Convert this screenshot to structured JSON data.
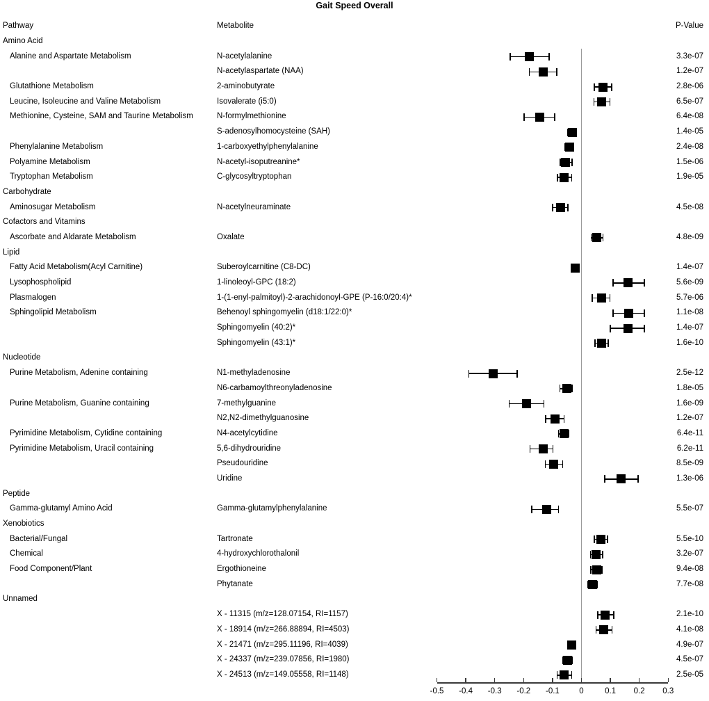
{
  "title": "Gait Speed Overall",
  "columns": {
    "pathway": "Pathway",
    "metabolite": "Metabolite",
    "pvalue": "P-Value"
  },
  "chart_data": {
    "type": "scatter",
    "variant": "forest-plot-with-table",
    "title": "Gait Speed Overall",
    "marker": "filled-black-square-with-ci-whiskers",
    "grid": false,
    "legend": "none",
    "x_axis": {
      "lim": [
        -0.5,
        0.3
      ],
      "ticks": [
        -0.5,
        -0.4,
        -0.3,
        -0.2,
        -0.1,
        0,
        0.1,
        0.2,
        0.3
      ],
      "tick_labels": [
        "-0.5",
        "-0.4",
        "-0.3",
        "-0.2",
        "-0.1",
        "0",
        "0.1",
        "0.2",
        "0.3"
      ],
      "reference_line_x": 0
    },
    "rows": [
      {
        "kind": "section",
        "label": "Amino Acid"
      },
      {
        "kind": "item",
        "pathway": "Alanine and Aspartate Metabolism",
        "metabolite": "N-acetylalanine",
        "pvalue": "3.3e-07",
        "est": -0.18,
        "lo": -0.246,
        "hi": -0.112
      },
      {
        "kind": "item",
        "pathway": "",
        "metabolite": "N-acetylaspartate (NAA)",
        "pvalue": "1.2e-07",
        "est": -0.132,
        "lo": -0.18,
        "hi": -0.085
      },
      {
        "kind": "item",
        "pathway": "Glutathione Metabolism",
        "metabolite": "2-aminobutyrate",
        "pvalue": "2.8e-06",
        "est": 0.075,
        "lo": 0.045,
        "hi": 0.105
      },
      {
        "kind": "item",
        "pathway": "Leucine, Isoleucine and Valine Metabolism",
        "metabolite": "Isovalerate (i5:0)",
        "pvalue": "6.5e-07",
        "est": 0.07,
        "lo": 0.043,
        "hi": 0.098
      },
      {
        "kind": "item",
        "pathway": "Methionine, Cysteine, SAM and Taurine Metabolism",
        "metabolite": "N-formylmethionine",
        "pvalue": "6.4e-08",
        "est": -0.145,
        "lo": -0.198,
        "hi": -0.093
      },
      {
        "kind": "item",
        "pathway": "",
        "metabolite": "S-adenosylhomocysteine (SAH)",
        "pvalue": "1.4e-05",
        "est": -0.032,
        "lo": -0.047,
        "hi": -0.019
      },
      {
        "kind": "item",
        "pathway": "Phenylalanine Metabolism",
        "metabolite": "1-carboxyethylphenylalanine",
        "pvalue": "2.4e-08",
        "est": -0.042,
        "lo": -0.056,
        "hi": -0.028
      },
      {
        "kind": "item",
        "pathway": "Polyamine Metabolism",
        "metabolite": "N-acetyl-isoputreanine*",
        "pvalue": "1.5e-06",
        "est": -0.055,
        "lo": -0.073,
        "hi": -0.033
      },
      {
        "kind": "item",
        "pathway": "Tryptophan Metabolism",
        "metabolite": "C-glycosyltryptophan",
        "pvalue": "1.9e-05",
        "est": -0.06,
        "lo": -0.083,
        "hi": -0.034
      },
      {
        "kind": "section",
        "label": "Carbohydrate"
      },
      {
        "kind": "item",
        "pathway": "Aminosugar Metabolism",
        "metabolite": "N-acetylneuraminate",
        "pvalue": "4.5e-08",
        "est": -0.073,
        "lo": -0.1,
        "hi": -0.047
      },
      {
        "kind": "section",
        "label": "Cofactors and Vitamins"
      },
      {
        "kind": "item",
        "pathway": "Ascorbate and Aldarate Metabolism",
        "metabolite": "Oxalate",
        "pvalue": "4.8e-09",
        "est": 0.053,
        "lo": 0.034,
        "hi": 0.075
      },
      {
        "kind": "section",
        "label": "Lipid"
      },
      {
        "kind": "item",
        "pathway": "Fatty Acid Metabolism(Acyl Carnitine)",
        "metabolite": "Suberoylcarnitine (C8-DC)",
        "pvalue": "1.4e-07",
        "est": -0.022,
        "lo": -0.036,
        "hi": -0.009
      },
      {
        "kind": "item",
        "pathway": "Lysophospholipid",
        "metabolite": "1-linoleoyl-GPC (18:2)",
        "pvalue": "5.6e-09",
        "est": 0.16,
        "lo": 0.11,
        "hi": 0.218
      },
      {
        "kind": "item",
        "pathway": "Plasmalogen",
        "metabolite": "1-(1-enyl-palmitoyl)-2-arachidonoyl-GPE (P-16:0/20:4)*",
        "pvalue": "5.7e-06",
        "est": 0.069,
        "lo": 0.037,
        "hi": 0.098
      },
      {
        "kind": "item",
        "pathway": "Sphingolipid Metabolism",
        "metabolite": "Behenoyl sphingomyelin (d18:1/22:0)*",
        "pvalue": "1.1e-08",
        "est": 0.164,
        "lo": 0.11,
        "hi": 0.218
      },
      {
        "kind": "item",
        "pathway": "",
        "metabolite": "Sphingomyelin (40:2)*",
        "pvalue": "1.4e-07",
        "est": 0.16,
        "lo": 0.1,
        "hi": 0.218
      },
      {
        "kind": "item",
        "pathway": "",
        "metabolite": "Sphingomyelin (43:1)*",
        "pvalue": "1.6e-10",
        "est": 0.069,
        "lo": 0.047,
        "hi": 0.092
      },
      {
        "kind": "section",
        "label": "Nucleotide"
      },
      {
        "kind": "item",
        "pathway": "Purine Metabolism, Adenine containing",
        "metabolite": "N1-methyladenosine",
        "pvalue": "2.5e-12",
        "est": -0.306,
        "lo": -0.389,
        "hi": -0.223
      },
      {
        "kind": "item",
        "pathway": "",
        "metabolite": "N6-carbamoylthreonyladenosine",
        "pvalue": "1.8e-05",
        "est": -0.05,
        "lo": -0.075,
        "hi": -0.033
      },
      {
        "kind": "item",
        "pathway": "Purine Metabolism, Guanine containing",
        "metabolite": "7-methylguanine",
        "pvalue": "1.6e-09",
        "est": -0.19,
        "lo": -0.25,
        "hi": -0.13
      },
      {
        "kind": "item",
        "pathway": "",
        "metabolite": "N2,N2-dimethylguanosine",
        "pvalue": "1.2e-07",
        "est": -0.091,
        "lo": -0.124,
        "hi": -0.06
      },
      {
        "kind": "item",
        "pathway": "Pyrimidine Metabolism, Cytidine containing",
        "metabolite": "N4-acetylcytidine",
        "pvalue": "6.4e-11",
        "est": -0.061,
        "lo": -0.079,
        "hi": -0.045
      },
      {
        "kind": "item",
        "pathway": "Pyrimidine Metabolism, Uracil containing",
        "metabolite": "5,6-dihydrouridine",
        "pvalue": "6.2e-11",
        "est": -0.133,
        "lo": -0.178,
        "hi": -0.099
      },
      {
        "kind": "item",
        "pathway": "",
        "metabolite": "Pseudouridine",
        "pvalue": "8.5e-09",
        "est": -0.095,
        "lo": -0.125,
        "hi": -0.065
      },
      {
        "kind": "item",
        "pathway": "",
        "metabolite": "Uridine",
        "pvalue": "1.3e-06",
        "est": 0.138,
        "lo": 0.08,
        "hi": 0.196
      },
      {
        "kind": "section",
        "label": "Peptide"
      },
      {
        "kind": "item",
        "pathway": "Gamma-glutamyl Amino Acid",
        "metabolite": "Gamma-glutamylphenylalanine",
        "pvalue": "5.5e-07",
        "est": -0.121,
        "lo": -0.172,
        "hi": -0.079
      },
      {
        "kind": "section",
        "label": "Xenobiotics"
      },
      {
        "kind": "item",
        "pathway": "Bacterial/Fungal",
        "metabolite": "Tartronate",
        "pvalue": "5.5e-10",
        "est": 0.067,
        "lo": 0.045,
        "hi": 0.09
      },
      {
        "kind": "item",
        "pathway": "Chemical",
        "metabolite": "4-hydroxychlorothalonil",
        "pvalue": "3.2e-07",
        "est": 0.051,
        "lo": 0.031,
        "hi": 0.073
      },
      {
        "kind": "item",
        "pathway": "Food Component/Plant",
        "metabolite": "Ergothioneine",
        "pvalue": "9.4e-08",
        "est": 0.053,
        "lo": 0.033,
        "hi": 0.071
      },
      {
        "kind": "item",
        "pathway": "",
        "metabolite": "Phytanate",
        "pvalue": "7.7e-08",
        "est": 0.039,
        "lo": 0.023,
        "hi": 0.054
      },
      {
        "kind": "section",
        "label": "Unnamed"
      },
      {
        "kind": "item",
        "pathway": "",
        "metabolite": "X - 11315 (m/z=128.07154, RI=1157)",
        "pvalue": "2.1e-10",
        "est": 0.082,
        "lo": 0.057,
        "hi": 0.112
      },
      {
        "kind": "item",
        "pathway": "",
        "metabolite": "X - 18914 (m/z=266.88894, RI=4503)",
        "pvalue": "4.1e-08",
        "est": 0.078,
        "lo": 0.05,
        "hi": 0.106
      },
      {
        "kind": "item",
        "pathway": "",
        "metabolite": "X - 21471 (m/z=295.11196, RI=4039)",
        "pvalue": "4.9e-07",
        "est": -0.034,
        "lo": -0.047,
        "hi": -0.022
      },
      {
        "kind": "item",
        "pathway": "",
        "metabolite": "X - 24337 (m/z=239.07856, RI=1980)",
        "pvalue": "4.5e-07",
        "est": -0.047,
        "lo": -0.065,
        "hi": -0.031
      },
      {
        "kind": "item",
        "pathway": "",
        "metabolite": "X - 24513 (m/z=149.05558, RI=1148)",
        "pvalue": "2.5e-05",
        "est": -0.06,
        "lo": -0.084,
        "hi": -0.034
      }
    ]
  }
}
